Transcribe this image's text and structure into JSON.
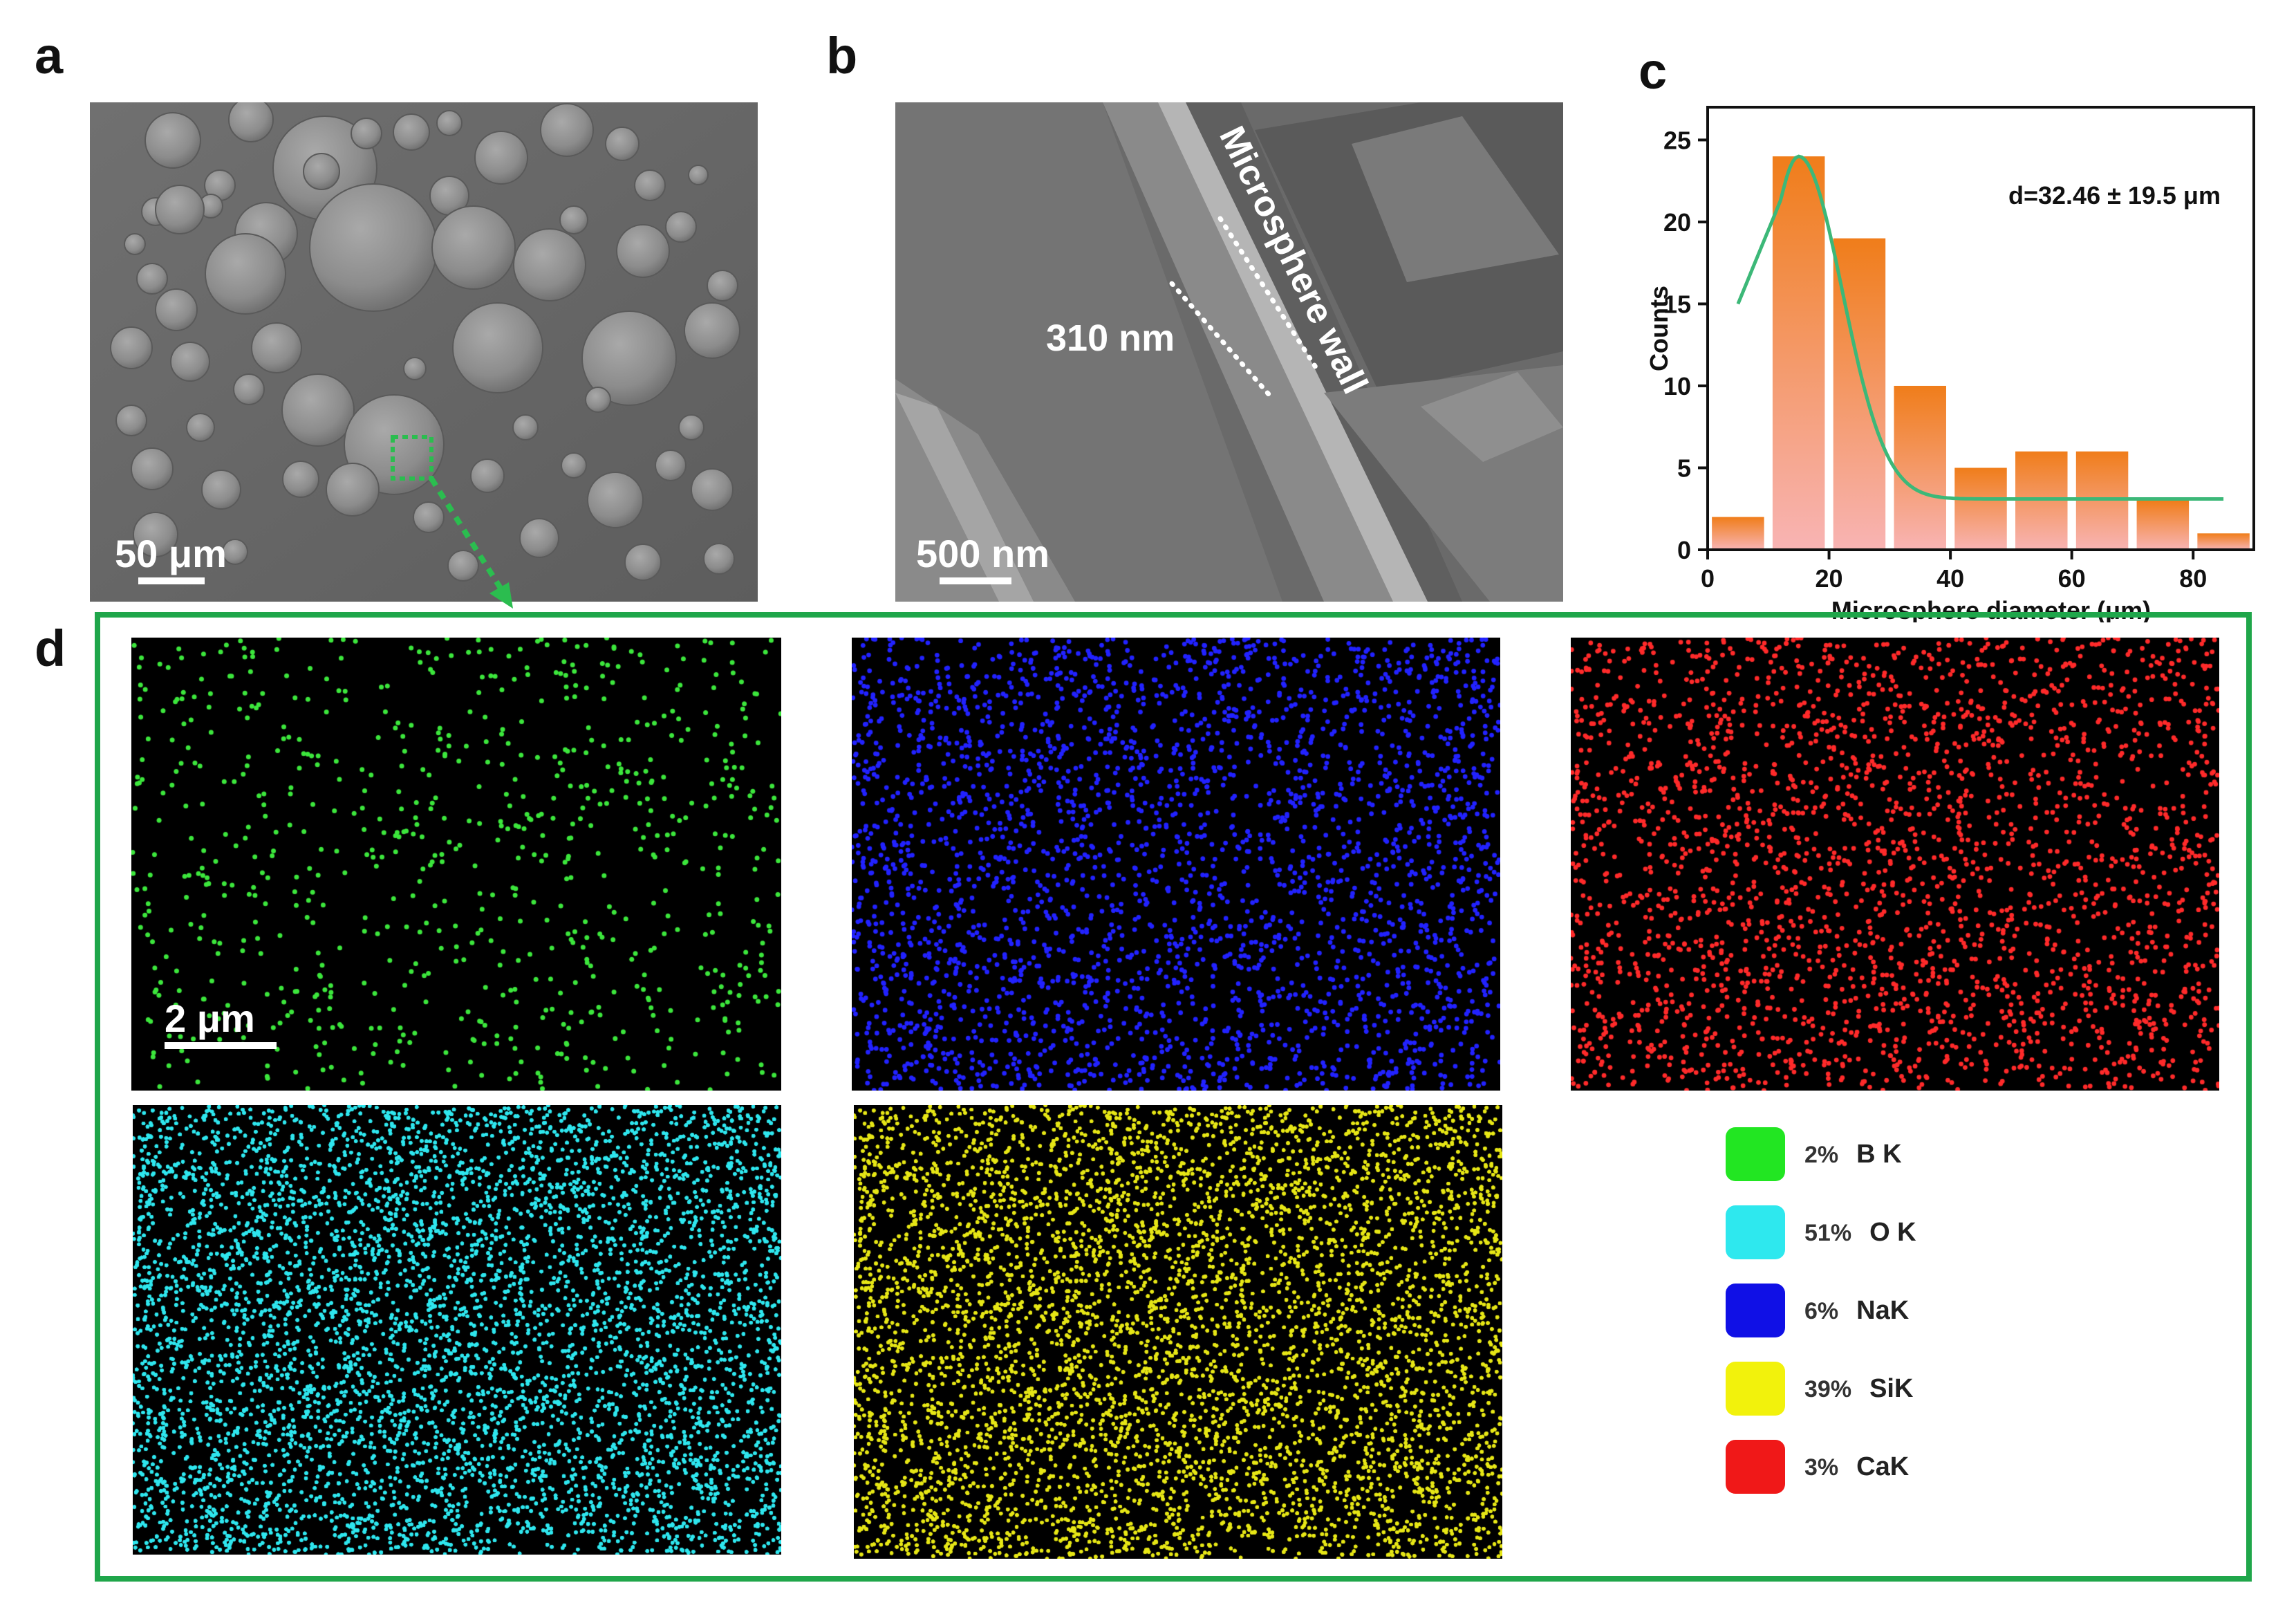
{
  "panels": {
    "a": {
      "label": "a",
      "scalebar": "50 μm"
    },
    "b": {
      "label": "b",
      "scalebar": "500 nm",
      "thickness": "310 nm",
      "wall_label": "Microsphere wall"
    },
    "c": {
      "label": "c"
    },
    "d": {
      "label": "d",
      "scalebar": "2 μm"
    }
  },
  "chart_data": {
    "type": "bar",
    "x": [
      5,
      15,
      25,
      35,
      45,
      55,
      65,
      75,
      85
    ],
    "values": [
      2,
      24,
      19,
      10,
      5,
      6,
      6,
      3,
      1
    ],
    "fit": {
      "type": "gaussian",
      "peak_x": 15,
      "peak_y": 24,
      "baseline": 3.1
    },
    "annotation": "d=32.46 ± 19.5 μm",
    "xlabel": "Microsphere diameter (μm)",
    "ylabel": "Counts",
    "xlim": [
      0,
      90
    ],
    "ylim": [
      0,
      27
    ],
    "xticks": [
      "0",
      "20",
      "40",
      "60",
      "80"
    ],
    "yticks": [
      "0",
      "5",
      "10",
      "15",
      "20",
      "25"
    ],
    "colors": {
      "bar_top": "#f07d1a",
      "bar_bottom": "#f8b4b4",
      "fit": "#3cb878"
    }
  },
  "legend": [
    {
      "pct": "2%",
      "element": "B K",
      "color": "#22e622"
    },
    {
      "pct": "51%",
      "element": "O K",
      "color": "#2ee8ee"
    },
    {
      "pct": "6%",
      "element": "NaK",
      "color": "#1010e6"
    },
    {
      "pct": "39%",
      "element": "SiK",
      "color": "#f2f20c"
    },
    {
      "pct": "3%",
      "element": "CaK",
      "color": "#f01818"
    }
  ],
  "maps": [
    {
      "element": "B",
      "color": "#3ce63c",
      "density": 0.045,
      "dot": 3.5
    },
    {
      "element": "Na",
      "color": "#2222ff",
      "density": 0.16,
      "dot": 3.4
    },
    {
      "element": "Ca",
      "color": "#ff2a2a",
      "density": 0.14,
      "dot": 3.4
    },
    {
      "element": "O",
      "color": "#2fe6ee",
      "density": 0.95,
      "dot": 2.6
    },
    {
      "element": "Si",
      "color": "#e6e616",
      "density": 0.85,
      "dot": 2.6
    }
  ],
  "colors": {
    "frame_green": "#1fa64a",
    "arrow_green": "#2bbd4f"
  }
}
